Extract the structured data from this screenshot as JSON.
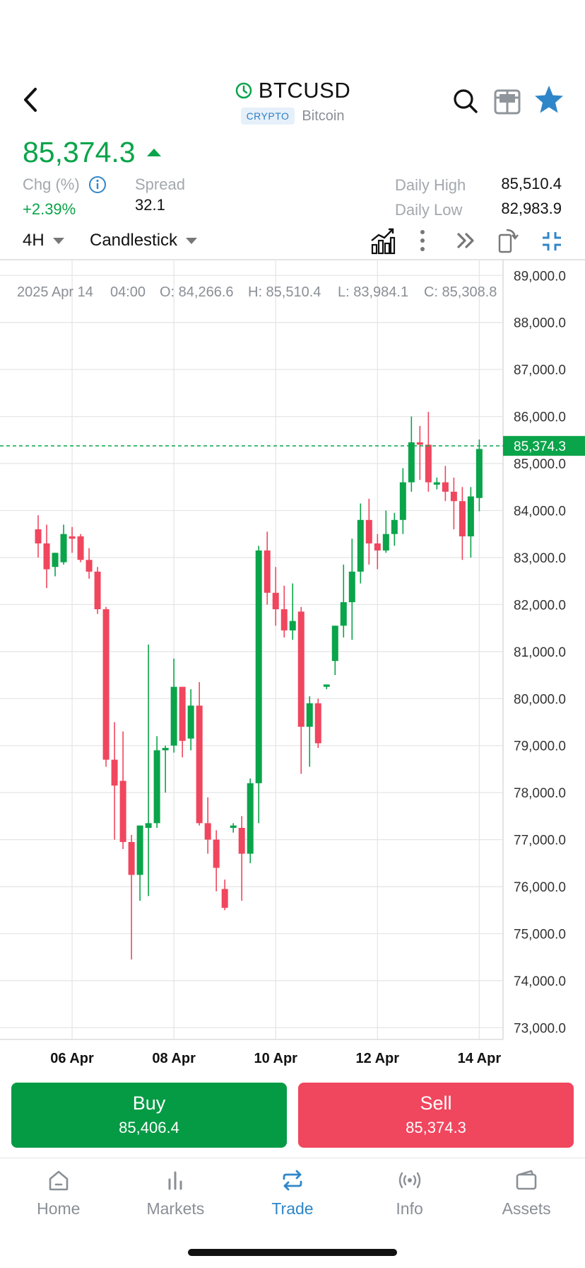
{
  "header": {
    "title": "BTCUSD",
    "badge": "CRYPTO",
    "subtitle": "Bitcoin",
    "icons": [
      "back-icon",
      "clock-icon",
      "search-icon",
      "widget-icon",
      "star-icon"
    ]
  },
  "quote": {
    "price": "85,374.3",
    "direction": "up",
    "chg_label": "Chg (%)",
    "chg_value": "+2.39%",
    "spread_label": "Spread",
    "spread_value": "32.1",
    "daily_high_label": "Daily High",
    "daily_high_value": "85,510.4",
    "daily_low_label": "Daily Low",
    "daily_low_value": "82,983.9"
  },
  "toolbar": {
    "timeframe": "4H",
    "chart_type": "Candlestick",
    "icons": [
      "indicator-icon",
      "more-icon",
      "forward-icon",
      "rotate-icon",
      "collapse-icon"
    ]
  },
  "chart_data": {
    "type": "candlestick",
    "ohlc_readout": {
      "date": "2025 Apr 14",
      "time": "04:00",
      "open": "O: 84,266.6",
      "high": "H: 85,510.4",
      "low": "L: 83,984.1",
      "close": "C: 85,308.8"
    },
    "y_ticks": [
      "89,000.0",
      "88,000.0",
      "87,000.0",
      "86,000.0",
      "85,000.0",
      "84,000.0",
      "83,000.0",
      "82,000.0",
      "81,000.0",
      "80,000.0",
      "79,000.0",
      "78,000.0",
      "77,000.0",
      "76,000.0",
      "75,000.0",
      "74,000.0",
      "73,000.0"
    ],
    "y_tick_values": [
      89000,
      88000,
      87000,
      86000,
      85000,
      84000,
      83000,
      82000,
      81000,
      80000,
      79000,
      78000,
      77000,
      76000,
      75000,
      74000,
      73000
    ],
    "ylim": [
      72750,
      89350
    ],
    "x_ticks": [
      "06 Apr",
      "08 Apr",
      "10 Apr",
      "12 Apr",
      "14 Apr"
    ],
    "x_tick_index": [
      4,
      16,
      28,
      40,
      52
    ],
    "x_range": [
      -4.5,
      54.8
    ],
    "current_price": 85374.3,
    "current_price_label": "85,374.3",
    "up_color": "#0aa44a",
    "down_color": "#f0465e",
    "candles": [
      {
        "o": 83600,
        "h": 83900,
        "l": 83000,
        "c": 83300
      },
      {
        "o": 83300,
        "h": 83700,
        "l": 82350,
        "c": 82750
      },
      {
        "o": 82800,
        "h": 83100,
        "l": 82600,
        "c": 83100
      },
      {
        "o": 82900,
        "h": 83700,
        "l": 82850,
        "c": 83500
      },
      {
        "o": 83450,
        "h": 83650,
        "l": 83100,
        "c": 83400
      },
      {
        "o": 83450,
        "h": 83500,
        "l": 82900,
        "c": 82950
      },
      {
        "o": 82950,
        "h": 83200,
        "l": 82550,
        "c": 82700
      },
      {
        "o": 82700,
        "h": 82800,
        "l": 81800,
        "c": 81900
      },
      {
        "o": 81900,
        "h": 81950,
        "l": 78550,
        "c": 78700
      },
      {
        "o": 78700,
        "h": 79500,
        "l": 77000,
        "c": 78150
      },
      {
        "o": 78250,
        "h": 79300,
        "l": 76800,
        "c": 76950
      },
      {
        "o": 76950,
        "h": 77100,
        "l": 74450,
        "c": 76250
      },
      {
        "o": 76250,
        "h": 77300,
        "l": 75700,
        "c": 77300
      },
      {
        "o": 77250,
        "h": 81150,
        "l": 75800,
        "c": 77350
      },
      {
        "o": 77350,
        "h": 79200,
        "l": 77250,
        "c": 78900
      },
      {
        "o": 78900,
        "h": 79000,
        "l": 78000,
        "c": 78950
      },
      {
        "o": 79000,
        "h": 80850,
        "l": 78850,
        "c": 80250
      },
      {
        "o": 80250,
        "h": 80200,
        "l": 78750,
        "c": 79100
      },
      {
        "o": 79150,
        "h": 80200,
        "l": 78900,
        "c": 79850
      },
      {
        "o": 79850,
        "h": 80350,
        "l": 77300,
        "c": 77350
      },
      {
        "o": 77350,
        "h": 77900,
        "l": 76700,
        "c": 77000
      },
      {
        "o": 77000,
        "h": 77200,
        "l": 75900,
        "c": 76400
      },
      {
        "o": 75950,
        "h": 76150,
        "l": 75500,
        "c": 75550
      },
      {
        "o": 77250,
        "h": 77350,
        "l": 77150,
        "c": 77300
      },
      {
        "o": 77250,
        "h": 77500,
        "l": 75700,
        "c": 76700
      },
      {
        "o": 76700,
        "h": 78300,
        "l": 76500,
        "c": 78200
      },
      {
        "o": 78200,
        "h": 83250,
        "l": 77350,
        "c": 83150
      },
      {
        "o": 83150,
        "h": 83550,
        "l": 82000,
        "c": 82250
      },
      {
        "o": 82250,
        "h": 82800,
        "l": 81550,
        "c": 81900
      },
      {
        "o": 81900,
        "h": 82400,
        "l": 81300,
        "c": 81450
      },
      {
        "o": 81450,
        "h": 82450,
        "l": 81250,
        "c": 81650
      },
      {
        "o": 81850,
        "h": 81950,
        "l": 78400,
        "c": 79400
      },
      {
        "o": 79400,
        "h": 80050,
        "l": 78550,
        "c": 79900
      },
      {
        "o": 79900,
        "h": 80000,
        "l": 78950,
        "c": 79050
      },
      {
        "o": 80250,
        "h": 80300,
        "l": 80200,
        "c": 80300
      },
      {
        "o": 80800,
        "h": 81550,
        "l": 80500,
        "c": 81550
      },
      {
        "o": 81550,
        "h": 82850,
        "l": 81300,
        "c": 82050
      },
      {
        "o": 82050,
        "h": 83400,
        "l": 81250,
        "c": 82700
      },
      {
        "o": 82700,
        "h": 84150,
        "l": 82450,
        "c": 83800
      },
      {
        "o": 83800,
        "h": 84250,
        "l": 82850,
        "c": 83300
      },
      {
        "o": 83300,
        "h": 83500,
        "l": 82750,
        "c": 83150
      },
      {
        "o": 83150,
        "h": 84000,
        "l": 83100,
        "c": 83500
      },
      {
        "o": 83500,
        "h": 83950,
        "l": 83250,
        "c": 83800
      },
      {
        "o": 83800,
        "h": 84900,
        "l": 83500,
        "c": 84600
      },
      {
        "o": 84600,
        "h": 86000,
        "l": 84400,
        "c": 85450
      },
      {
        "o": 85450,
        "h": 85800,
        "l": 84650,
        "c": 85400
      },
      {
        "o": 85400,
        "h": 86100,
        "l": 84400,
        "c": 84600
      },
      {
        "o": 84550,
        "h": 84700,
        "l": 84450,
        "c": 84600
      },
      {
        "o": 84600,
        "h": 84950,
        "l": 84200,
        "c": 84400
      },
      {
        "o": 84400,
        "h": 84700,
        "l": 83600,
        "c": 84200
      },
      {
        "o": 84200,
        "h": 84500,
        "l": 82950,
        "c": 83450
      },
      {
        "o": 83450,
        "h": 84500,
        "l": 83000,
        "c": 84300
      },
      {
        "o": 84266.6,
        "h": 85510.4,
        "l": 83984.1,
        "c": 85308.8
      }
    ]
  },
  "trade": {
    "buy_label": "Buy",
    "buy_price": "85,406.4",
    "sell_label": "Sell",
    "sell_price": "85,374.3"
  },
  "nav": [
    {
      "label": "Home",
      "icon": "home-icon",
      "active": false
    },
    {
      "label": "Markets",
      "icon": "markets-icon",
      "active": false
    },
    {
      "label": "Trade",
      "icon": "trade-icon",
      "active": true
    },
    {
      "label": "Info",
      "icon": "info-broadcast-icon",
      "active": false
    },
    {
      "label": "Assets",
      "icon": "wallet-icon",
      "active": false
    }
  ]
}
